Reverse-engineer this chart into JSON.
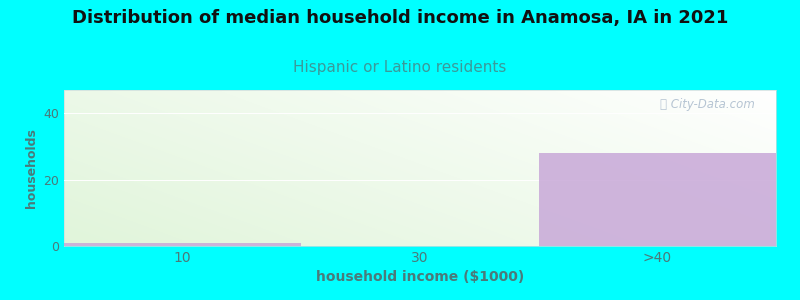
{
  "title": "Distribution of median household income in Anamosa, IA in 2021",
  "subtitle": "Hispanic or Latino residents",
  "xlabel": "household income ($1000)",
  "ylabel": "households",
  "background_color": "#00FFFF",
  "categories": [
    "10",
    "30",
    ">40"
  ],
  "values": [
    1,
    0,
    28
  ],
  "bar_color": "#c8a8d8",
  "bar_alpha": 0.85,
  "ylim": [
    0,
    47
  ],
  "yticks": [
    0,
    20,
    40
  ],
  "watermark": "ⓘ City-Data.com",
  "title_fontsize": 13,
  "subtitle_fontsize": 11,
  "subtitle_color": "#3a9a9a",
  "axis_label_color": "#4a7a7a",
  "tick_color": "#4a7a7a",
  "title_color": "#111111",
  "watermark_color": "#aabbcc"
}
